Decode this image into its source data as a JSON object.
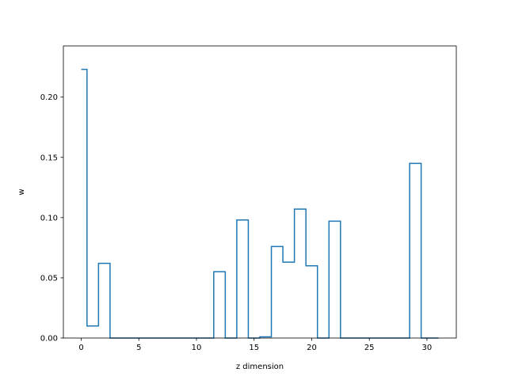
{
  "chart_data": {
    "type": "line",
    "drawstyle": "steps-mid",
    "title": "",
    "xlabel": "z dimension",
    "ylabel": "w",
    "xlim": [
      -1.55,
      32.55
    ],
    "ylim": [
      0,
      0.2425
    ],
    "grid": false,
    "legend": "none",
    "x_ticks": [
      0,
      5,
      10,
      15,
      20,
      25,
      30
    ],
    "x_tick_labels": [
      "0",
      "5",
      "10",
      "15",
      "20",
      "25",
      "30"
    ],
    "y_ticks": [
      0,
      0.05,
      0.1,
      0.15,
      0.2
    ],
    "y_tick_labels": [
      "0.00",
      "0.05",
      "0.10",
      "0.15",
      "0.20"
    ],
    "series": [
      {
        "color": "#1f77b4",
        "x": [
          0,
          1,
          2,
          3,
          4,
          5,
          6,
          7,
          8,
          9,
          10,
          11,
          12,
          13,
          14,
          15,
          16,
          17,
          18,
          19,
          20,
          21,
          22,
          23,
          24,
          25,
          26,
          27,
          28,
          29,
          30,
          31
        ],
        "values": [
          0.223,
          0.01,
          0.062,
          0,
          0,
          0,
          0,
          0,
          0,
          0,
          0,
          0,
          0.055,
          0,
          0.098,
          0,
          0.001,
          0.076,
          0.063,
          0.107,
          0.06,
          0,
          0.097,
          0,
          0,
          0,
          0,
          0,
          0,
          0.145,
          0,
          0
        ]
      }
    ]
  }
}
